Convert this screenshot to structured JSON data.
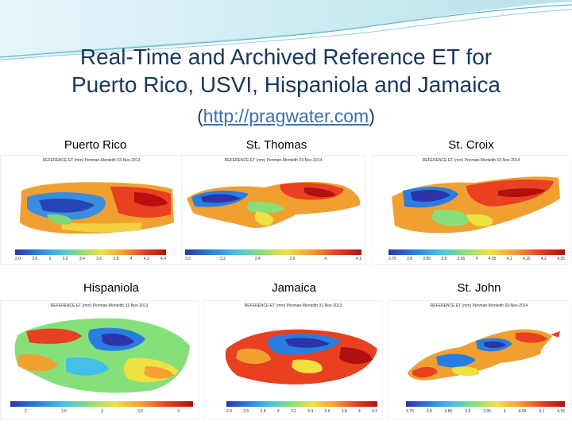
{
  "slide": {
    "title_line1": "Real-Time and Archived Reference ET for",
    "title_line2": "Puerto Rico, USVI, Hispaniola and Jamaica",
    "url_open": "(",
    "url_text": "http://pragwater.com",
    "url_close": ")"
  },
  "panels": [
    {
      "label": "Puerto Rico",
      "header": "REFERENCE ET (mm) Penman-Monteith 03-Nov-2013",
      "ticks": [
        "2.0",
        "2.6",
        "3",
        "3.2",
        "3.4",
        "3.6",
        "3.8",
        "4",
        "4.2",
        "4.4"
      ]
    },
    {
      "label": "St. Thomas",
      "header": "REFERENCE ET (mm) Penman-Monteith 03-Nov-2014",
      "ticks": [
        "3.5",
        "3.2",
        "3.4",
        "3.6",
        "4",
        "4.1"
      ]
    },
    {
      "label": "St. Croix",
      "header": "REFERENCE ET (mm) Penman-Monteith 03-Nov-2014",
      "ticks": [
        "3.75",
        "3.8",
        "3.85",
        "3.9",
        "3.95",
        "4",
        "4.05",
        "4.1",
        "4.15",
        "4.2",
        "4.25"
      ]
    },
    {
      "label": "Hispaniola",
      "header": "REFERENCE ET (mm) Penman-Monteith 31-Nov-2013",
      "ticks": [
        "2",
        "2.5",
        "3",
        "3.5",
        "4"
      ]
    },
    {
      "label": "Jamaica",
      "header": "REFERENCE ET (mm) Penman-Monteith 31-Nov-2013",
      "ticks": [
        "2.4",
        "2.6",
        "2.8",
        "3",
        "3.2",
        "3.4",
        "3.6",
        "3.8",
        "4",
        "4.2"
      ]
    },
    {
      "label": "St. John",
      "header": "REFERENCE ET (mm) Penman-Monteith 03-Nov-2014",
      "ticks": [
        "3.75",
        "3.8",
        "3.85",
        "3.9",
        "3.95",
        "4",
        "4.05",
        "4.1",
        "4.15"
      ]
    }
  ]
}
